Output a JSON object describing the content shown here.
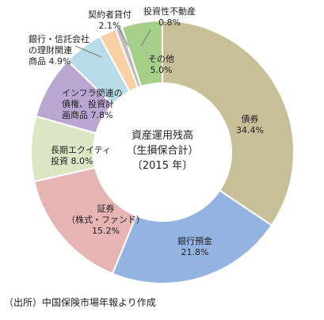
{
  "chart_data": {
    "type": "pie",
    "donut": true,
    "title_lines": [
      "資産運用残高",
      "（生損保合計）",
      "〔2015 年〕"
    ],
    "slices": [
      {
        "label_lines": [
          "債券",
          "34.4%"
        ],
        "value": 34.4,
        "color": "#c7bf98"
      },
      {
        "label_lines": [
          "銀行預金",
          "21.8%"
        ],
        "value": 21.8,
        "color": "#93b4e1"
      },
      {
        "label_lines": [
          "証券",
          "（株式・ファンド）",
          "15.2%"
        ],
        "value": 15.2,
        "color": "#e6b4b3"
      },
      {
        "label_lines": [
          "長期エクイティ",
          "投資 8.0%"
        ],
        "value": 8.0,
        "color": "#dbe7c4"
      },
      {
        "label_lines": [
          "インフラ関連の",
          "債権、投資計",
          "画商品 7.8%"
        ],
        "value": 7.8,
        "color": "#b9a7d1"
      },
      {
        "label_lines": [
          "銀行・信託会社",
          "の理財関連",
          "商品 4.9%"
        ],
        "value": 4.9,
        "color": "#b8dce7"
      },
      {
        "label_lines": [
          "契約者貸付",
          "2.1%"
        ],
        "value": 2.1,
        "color": "#f9cfa4"
      },
      {
        "label_lines": [
          "投資性不動産",
          "0.8%"
        ],
        "value": 0.8,
        "color": "#bdbdbd"
      },
      {
        "label_lines": [
          "その他",
          "5.0%"
        ],
        "value": 5.0,
        "color": "#a6cf8a"
      }
    ]
  },
  "source": "（出所）中国保険市場年報より作成"
}
